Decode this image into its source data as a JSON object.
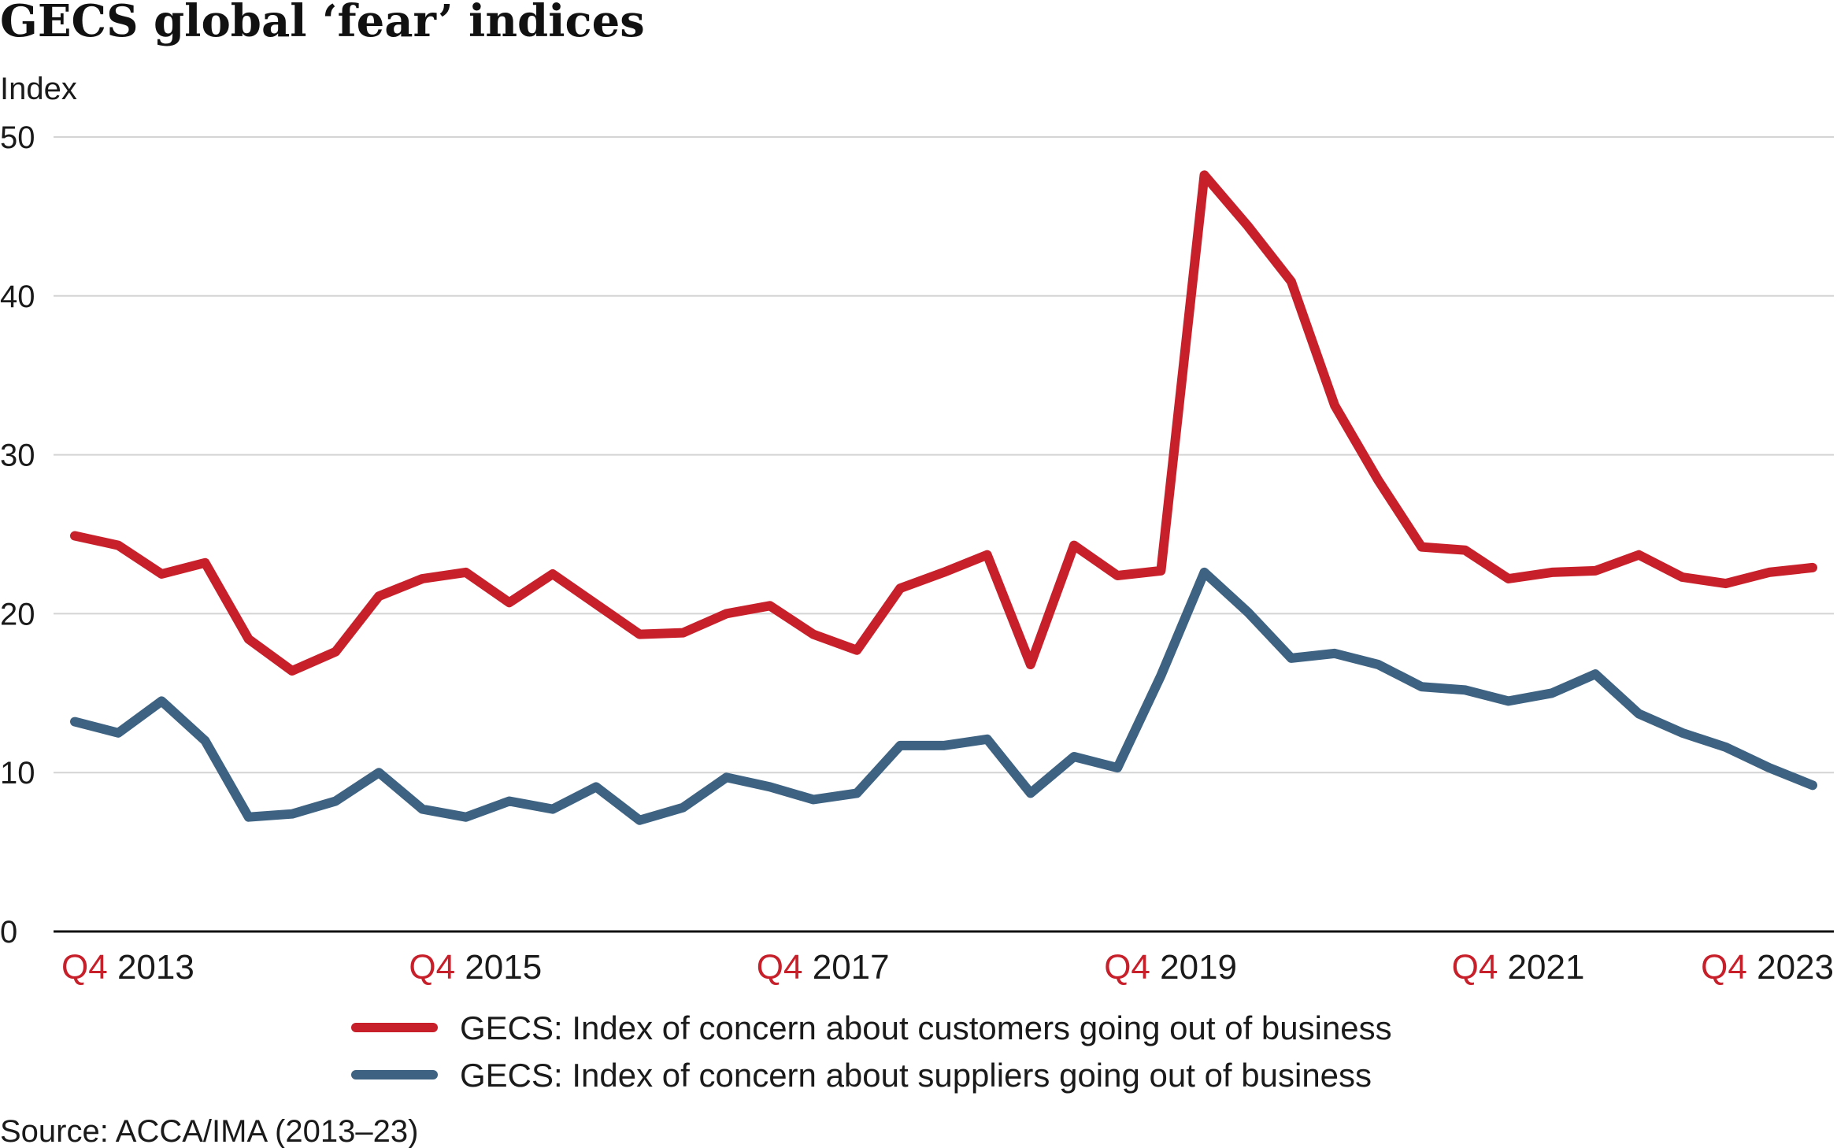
{
  "chart_data": {
    "type": "line",
    "title": "GECS global ‘fear’ indices",
    "ylabel": "Index",
    "xlabel": "",
    "ylim": [
      0,
      50
    ],
    "yticks": [
      "0",
      "10",
      "20",
      "30",
      "40",
      "50"
    ],
    "grid": true,
    "legend_placement": "bottom",
    "x": [
      "Q4 2013",
      "Q1 2014",
      "Q2 2014",
      "Q3 2014",
      "Q4 2014",
      "Q1 2015",
      "Q2 2015",
      "Q3 2015",
      "Q4 2015",
      "Q1 2016",
      "Q2 2016",
      "Q3 2016",
      "Q4 2016",
      "Q1 2017",
      "Q2 2017",
      "Q3 2017",
      "Q4 2017",
      "Q1 2018",
      "Q2 2018",
      "Q3 2018",
      "Q4 2018",
      "Q1 2019",
      "Q2 2019",
      "Q3 2019",
      "Q4 2019",
      "Q1 2020",
      "Q2 2020",
      "Q3 2020",
      "Q4 2020",
      "Q1 2021",
      "Q2 2021",
      "Q3 2021",
      "Q4 2021",
      "Q1 2022",
      "Q2 2022",
      "Q3 2022",
      "Q4 2022",
      "Q1 2023",
      "Q2 2023",
      "Q3 2023",
      "Q4 2023"
    ],
    "xticks": [
      {
        "quarter": "Q4",
        "year": "2013"
      },
      {
        "quarter": "Q4",
        "year": "2015"
      },
      {
        "quarter": "Q4",
        "year": "2017"
      },
      {
        "quarter": "Q4",
        "year": "2019"
      },
      {
        "quarter": "Q4",
        "year": "2021"
      },
      {
        "quarter": "Q4",
        "year": "2023"
      }
    ],
    "series": [
      {
        "name": "GECS: Index of concern about customers going out of business",
        "color": "#c8202b",
        "values": [
          24.9,
          24.3,
          22.5,
          23.2,
          18.4,
          16.4,
          17.6,
          21.1,
          22.2,
          22.6,
          20.7,
          22.5,
          20.6,
          18.7,
          18.8,
          20.0,
          20.5,
          18.7,
          17.7,
          21.6,
          22.6,
          23.7,
          16.8,
          24.3,
          22.4,
          22.7,
          47.6,
          44.4,
          40.9,
          33.1,
          28.4,
          24.2,
          24.0,
          22.2,
          22.6,
          22.7,
          23.7,
          22.3,
          21.9,
          22.6,
          22.9
        ]
      },
      {
        "name": "GECS: Index of concern about suppliers going out of business",
        "color": "#3d6282",
        "values": [
          13.2,
          12.5,
          14.5,
          12.0,
          7.2,
          7.4,
          8.2,
          10.0,
          7.7,
          7.2,
          8.2,
          7.7,
          9.1,
          7.0,
          7.8,
          9.7,
          9.1,
          8.3,
          8.7,
          11.7,
          11.7,
          12.1,
          8.7,
          11.0,
          10.3,
          16.1,
          22.6,
          20.1,
          17.2,
          17.5,
          16.8,
          15.4,
          15.2,
          14.5,
          15.0,
          16.2,
          13.7,
          12.5,
          11.6,
          10.3,
          9.2
        ]
      }
    ],
    "source": "Source: ACCA/IMA (2013–23)"
  }
}
